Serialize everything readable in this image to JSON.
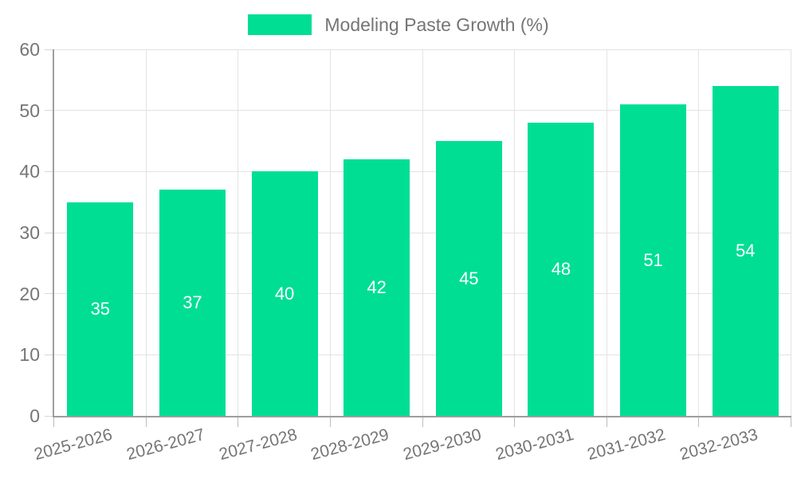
{
  "legend": {
    "label": "Modeling Paste Growth (%)"
  },
  "chart_data": {
    "type": "bar",
    "title": "Modeling Paste Growth (%)",
    "categories": [
      "2025-2026",
      "2026-2027",
      "2027-2028",
      "2028-2029",
      "2029-2030",
      "2030-2031",
      "2031-2032",
      "2032-2033"
    ],
    "values": [
      35,
      37,
      40,
      42,
      45,
      48,
      51,
      54
    ],
    "xlabel": "",
    "ylabel": "",
    "ylim": [
      0,
      60
    ],
    "yticks": [
      0,
      10,
      20,
      30,
      40,
      50,
      60
    ],
    "grid": true,
    "legend_position": "top",
    "colors": {
      "bar": "#00de94",
      "value_label": "#ffffff",
      "axis_text": "#757575",
      "axis_line": "#9e9e9e",
      "gridline": "#e3e3e3"
    }
  }
}
